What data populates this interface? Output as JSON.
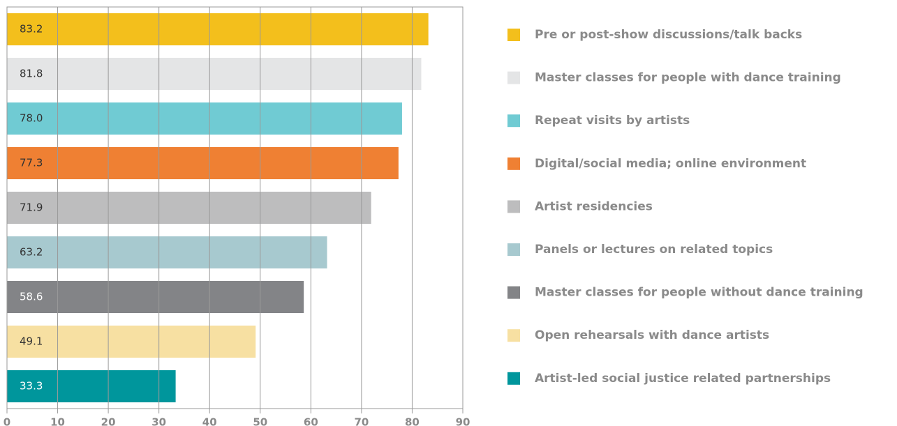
{
  "chart_data": {
    "type": "bar",
    "orientation": "horizontal",
    "categories": [
      "Pre or post-show discussions/talk backs",
      "Master classes for people with dance training",
      "Repeat visits by artists",
      "Digital/social media; online environment",
      "Artist residencies",
      "Panels or lectures on related topics",
      "Master classes for people without dance training",
      "Open rehearsals with dance artists",
      "Artist-led social justice related partnerships"
    ],
    "values": [
      83.2,
      81.8,
      78,
      77.3,
      71.9,
      63.2,
      58.6,
      49.1,
      33.3
    ],
    "value_labels": [
      "83.2",
      "81.8",
      "78.0",
      "77.3",
      "71.9",
      "63.2",
      "58.6",
      "49.1",
      "33.3"
    ],
    "colors": [
      "#f3bf1c",
      "#e4e5e6",
      "#70cbd3",
      "#ef8033",
      "#bdbdbe",
      "#a7c9cf",
      "#838487",
      "#f7e0a2",
      "#00969c"
    ],
    "xlim": [
      0,
      90
    ],
    "xticks": [
      0,
      10,
      20,
      30,
      40,
      50,
      60,
      70,
      80,
      90
    ],
    "grid": true,
    "legend": "right"
  }
}
